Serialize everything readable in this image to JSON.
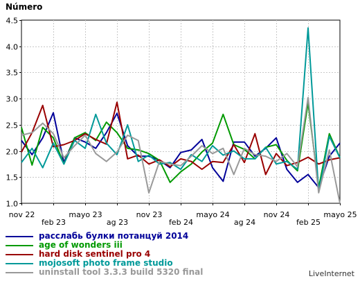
{
  "credit": "LiveInternet",
  "chart_data": {
    "type": "line",
    "title": "",
    "xlabel": "",
    "ylabel": "Número",
    "ylim": [
      1.0,
      4.5
    ],
    "yticks": [
      "1.0",
      "1.5",
      "2.0",
      "2.5",
      "3.0",
      "3.5",
      "4.0",
      "4.5"
    ],
    "grid": true,
    "legend_position": "bottom",
    "x_ticks_row1": [
      "nov 22",
      "mayo 23",
      "nov 23",
      "mayo 24",
      "nov 24",
      "mayo 25"
    ],
    "x_ticks_row2": [
      "feb 23",
      "ag 23",
      "feb 24",
      "ag 24",
      "feb 25"
    ],
    "series": [
      {
        "name": "расслабь булки потанцуй 2014",
        "color": "#000099",
        "values": [
          2.2,
          1.93,
          2.25,
          2.73,
          1.78,
          2.25,
          2.17,
          2.05,
          2.35,
          2.72,
          2.1,
          1.9,
          1.9,
          1.82,
          1.68,
          1.97,
          2.02,
          2.22,
          1.68,
          1.42,
          2.17,
          2.17,
          1.9,
          2.05,
          2.25,
          1.65,
          1.4,
          1.55,
          1.3,
          1.9,
          2.15
        ]
      },
      {
        "name": "age of wonders iii",
        "color": "#009900",
        "values": [
          2.45,
          1.73,
          2.45,
          2.25,
          1.75,
          2.25,
          2.35,
          2.2,
          2.55,
          2.35,
          2.05,
          2.02,
          1.95,
          1.82,
          1.4,
          1.6,
          1.75,
          1.98,
          2.15,
          2.7,
          2.12,
          2.03,
          1.85,
          2.07,
          2.12,
          1.82,
          1.62,
          2.92,
          1.3,
          2.33,
          1.87
        ]
      },
      {
        "name": "hard disk sentinel pro 4",
        "color": "#990000",
        "values": [
          1.98,
          2.35,
          2.87,
          2.08,
          2.12,
          2.2,
          2.33,
          2.22,
          2.13,
          2.93,
          1.85,
          1.92,
          1.75,
          1.83,
          1.7,
          1.85,
          1.8,
          1.65,
          1.8,
          1.78,
          2.12,
          1.78,
          2.33,
          1.55,
          1.95,
          1.72,
          1.78,
          1.88,
          1.75,
          1.83,
          1.87
        ]
      },
      {
        "name": "mojosoft photo frame studio",
        "color": "#009999",
        "values": [
          1.78,
          2.05,
          1.68,
          2.15,
          1.75,
          2.2,
          2.05,
          2.7,
          2.15,
          1.93,
          2.5,
          1.8,
          1.92,
          1.75,
          1.78,
          1.65,
          1.93,
          1.8,
          2.1,
          1.92,
          2.0,
          1.85,
          1.85,
          2.07,
          1.75,
          1.8,
          1.65,
          4.35,
          1.22,
          2.28,
          1.87
        ]
      },
      {
        "name": "uninstall tool 3.3.3 build 5320 final",
        "color": "#999999",
        "values": [
          2.3,
          2.35,
          2.53,
          2.33,
          1.87,
          2.1,
          2.3,
          1.95,
          1.8,
          1.98,
          2.3,
          2.2,
          1.2,
          1.8,
          1.75,
          1.72,
          1.9,
          2.1,
          1.95,
          2.05,
          1.55,
          2.05,
          1.93,
          1.9,
          1.8,
          1.95,
          1.7,
          3.02,
          1.2,
          2.02,
          1.0
        ]
      }
    ]
  }
}
